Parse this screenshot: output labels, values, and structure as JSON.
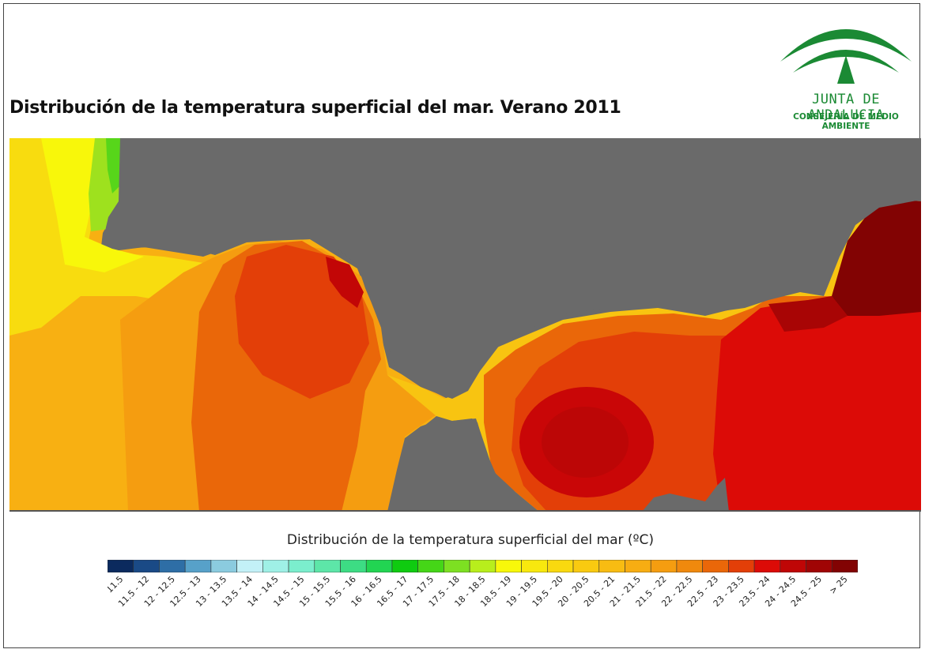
{
  "title": "Distribución de la temperatura superficial del mar. Verano 2011",
  "logo": {
    "name": "JUNTA DE ANDALUCIA",
    "subtitle": "CONSEJERÍA DE MEDIO AMBIENTE",
    "color": "#1b8a34"
  },
  "map": {
    "land_color": "#6a6a6a"
  },
  "legend": {
    "title": "Distribución de la temperatura superficial del mar (ºC)",
    "classes": [
      {
        "label": "< 11.5",
        "color": "#0b2a5e"
      },
      {
        "label": "11.5 - 12",
        "color": "#1a4a86"
      },
      {
        "label": "12 - 12.5",
        "color": "#2e6ea6"
      },
      {
        "label": "12.5 - 13",
        "color": "#57a1c9"
      },
      {
        "label": "13 - 13.5",
        "color": "#8bcbdf"
      },
      {
        "label": "13.5 - 14",
        "color": "#c3f1f7"
      },
      {
        "label": "14 - 14.5",
        "color": "#9ff0e6"
      },
      {
        "label": "14.5 - 15",
        "color": "#7beecd"
      },
      {
        "label": "15 - 15.5",
        "color": "#5de6a8"
      },
      {
        "label": "15.5 - 16",
        "color": "#3ddc84"
      },
      {
        "label": "16 - 16.5",
        "color": "#22d452"
      },
      {
        "label": "16.5 - 17",
        "color": "#0fcb10"
      },
      {
        "label": "17 - 17.5",
        "color": "#45d617"
      },
      {
        "label": "17.5 - 18",
        "color": "#7de022"
      },
      {
        "label": "18 - 18.5",
        "color": "#b8ee1c"
      },
      {
        "label": "18.5 - 19",
        "color": "#f8f80a"
      },
      {
        "label": "19 - 19.5",
        "color": "#f8e80e"
      },
      {
        "label": "19.5 - 20",
        "color": "#f9d90f"
      },
      {
        "label": "20 - 20.5",
        "color": "#f9ca10"
      },
      {
        "label": "20.5 - 21",
        "color": "#f8bc12"
      },
      {
        "label": "21 - 21.5",
        "color": "#f7ad12"
      },
      {
        "label": "21.5 - 22",
        "color": "#f59d10"
      },
      {
        "label": "22 - 22.5",
        "color": "#f0890d"
      },
      {
        "label": "22.5 - 23",
        "color": "#ea6709"
      },
      {
        "label": "23 - 23.5",
        "color": "#e33f08"
      },
      {
        "label": "23.5 - 24",
        "color": "#dc0b07"
      },
      {
        "label": "24 - 24.5",
        "color": "#bf0606"
      },
      {
        "label": "24.5 - 25",
        "color": "#a00505"
      },
      {
        "label": "> 25",
        "color": "#820303"
      }
    ]
  }
}
